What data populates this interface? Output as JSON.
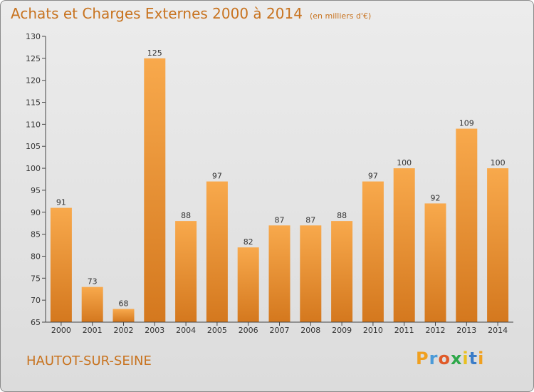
{
  "title": "Achats et Charges Externes 2000 à 2014",
  "unit": "(en milliers d'€)",
  "commune": "HAUTOT-SUR-SEINE",
  "logo": {
    "letters": [
      "P",
      "r",
      "o",
      "x",
      "i",
      "t",
      "i"
    ],
    "colors": [
      "#f0a020",
      "#4a9ad8",
      "#e05a28",
      "#2ea84a",
      "#e8c020",
      "#3a7cc8",
      "#f0a020"
    ]
  },
  "colors": {
    "accent": "#c8731f",
    "bar_top": "#f8a94c",
    "bar_bottom": "#d4781e"
  },
  "chart_data": {
    "type": "bar",
    "categories": [
      "2000",
      "2001",
      "2002",
      "2003",
      "2004",
      "2005",
      "2006",
      "2007",
      "2008",
      "2009",
      "2010",
      "2011",
      "2012",
      "2013",
      "2014"
    ],
    "values": [
      91,
      73,
      68,
      125,
      88,
      97,
      82,
      87,
      87,
      88,
      97,
      100,
      92,
      109,
      100
    ],
    "ylim": [
      65,
      130
    ],
    "yticks": [
      65,
      70,
      75,
      80,
      85,
      90,
      95,
      100,
      105,
      110,
      115,
      120,
      125,
      130
    ],
    "grid": false
  }
}
